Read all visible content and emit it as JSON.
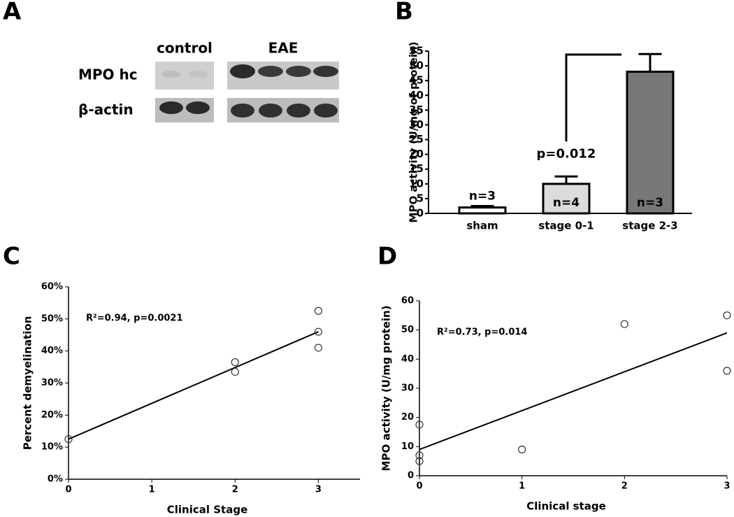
{
  "blot": {
    "panel_label": "A",
    "lanes": [
      "control",
      "EAE"
    ],
    "rows": [
      "MPO hc",
      "β-actin"
    ]
  },
  "chart_data": [
    {
      "type": "bar",
      "panel_label": "B",
      "y_label": "MPO activity (U/mg of protein)",
      "categories": [
        "sham",
        "stage 0-1",
        "stage 2-3"
      ],
      "values": [
        2,
        10,
        48
      ],
      "errors": [
        0.5,
        2.5,
        6
      ],
      "value_labels": [
        "n=3",
        "n=4",
        "n=3"
      ],
      "colors": [
        "#ffffff",
        "#dcdcdc",
        "#777777"
      ],
      "annotation": "p=0.012",
      "ylim": [
        0,
        55
      ],
      "yticks": [
        0,
        5,
        10,
        15,
        20,
        25,
        30,
        35,
        40,
        45,
        50,
        55
      ]
    },
    {
      "type": "scatter",
      "panel_label": "C",
      "x_label": "Clinical Stage",
      "y_label": "Percent demyelination",
      "annotation": "R²=0.94, p=0.0021",
      "x": [
        0,
        2,
        2,
        3,
        3,
        3
      ],
      "values": [
        12.5,
        36.5,
        33.5,
        52.5,
        46,
        41
      ],
      "fit_line": {
        "x": [
          0,
          3
        ],
        "values": [
          12.5,
          46
        ]
      },
      "xlim": [
        0,
        3.5
      ],
      "xticks": [
        0,
        1,
        2,
        3
      ],
      "ylim": [
        0,
        60
      ],
      "yticks": [
        {
          "value": 0,
          "label": "0%"
        },
        {
          "value": 10,
          "label": "10%"
        },
        {
          "value": 20,
          "label": "20%"
        },
        {
          "value": 30,
          "label": "30%"
        },
        {
          "value": 40,
          "label": "40%"
        },
        {
          "value": 50,
          "label": "50%"
        },
        {
          "value": 60,
          "label": "60%"
        }
      ]
    },
    {
      "type": "scatter",
      "panel_label": "D",
      "x_label": "Clinical stage",
      "y_label": "MPO activity (U/mg protein)",
      "annotation": "R²=0.73, p=0.014",
      "x": [
        0,
        0,
        0,
        1,
        2,
        3,
        3
      ],
      "values": [
        17.5,
        7,
        5,
        9,
        52,
        55,
        36
      ],
      "fit_line": {
        "x": [
          0,
          3
        ],
        "values": [
          9,
          49
        ]
      },
      "xlim": [
        0,
        3
      ],
      "xticks": [
        0,
        1,
        2,
        3
      ],
      "ylim": [
        0,
        60
      ],
      "yticks": [
        0,
        10,
        20,
        30,
        40,
        50,
        60
      ]
    }
  ]
}
